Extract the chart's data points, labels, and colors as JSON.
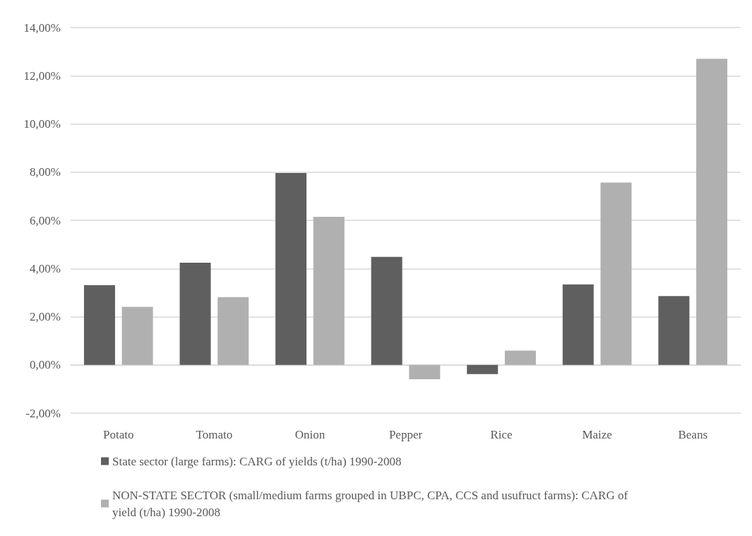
{
  "chart_data": {
    "type": "bar",
    "categories": [
      "Potato",
      "Tomato",
      "Onion",
      "Pepper",
      "Rice",
      "Maize",
      "Beans"
    ],
    "series": [
      {
        "name": "State sector (large farms): CARG of yields (t/ha) 1990-2008",
        "color": "#5f5f5f",
        "values": [
          3.31,
          4.24,
          7.96,
          4.48,
          -0.38,
          3.34,
          2.86
        ]
      },
      {
        "name": "NON-STATE SECTOR (small/medium farms grouped in UBPC, CPA, CCS and usufruct farms): CARG of yield (t/ha) 1990-2008",
        "color": "#b0b0b0",
        "values": [
          2.41,
          2.81,
          6.15,
          -0.59,
          0.59,
          7.57,
          12.7
        ]
      }
    ],
    "ylim": [
      -2,
      14
    ],
    "yticks": [
      {
        "value": -2,
        "label": "-2,00%"
      },
      {
        "value": 0,
        "label": "0,00%"
      },
      {
        "value": 2,
        "label": "2,00%"
      },
      {
        "value": 4,
        "label": "4,00%"
      },
      {
        "value": 6,
        "label": "6,00%"
      },
      {
        "value": 8,
        "label": "8,00%"
      },
      {
        "value": 10,
        "label": "10,00%"
      },
      {
        "value": 12,
        "label": "12,00%"
      },
      {
        "value": 14,
        "label": "14,00%"
      }
    ],
    "grid": "y",
    "legend": "bottom"
  }
}
